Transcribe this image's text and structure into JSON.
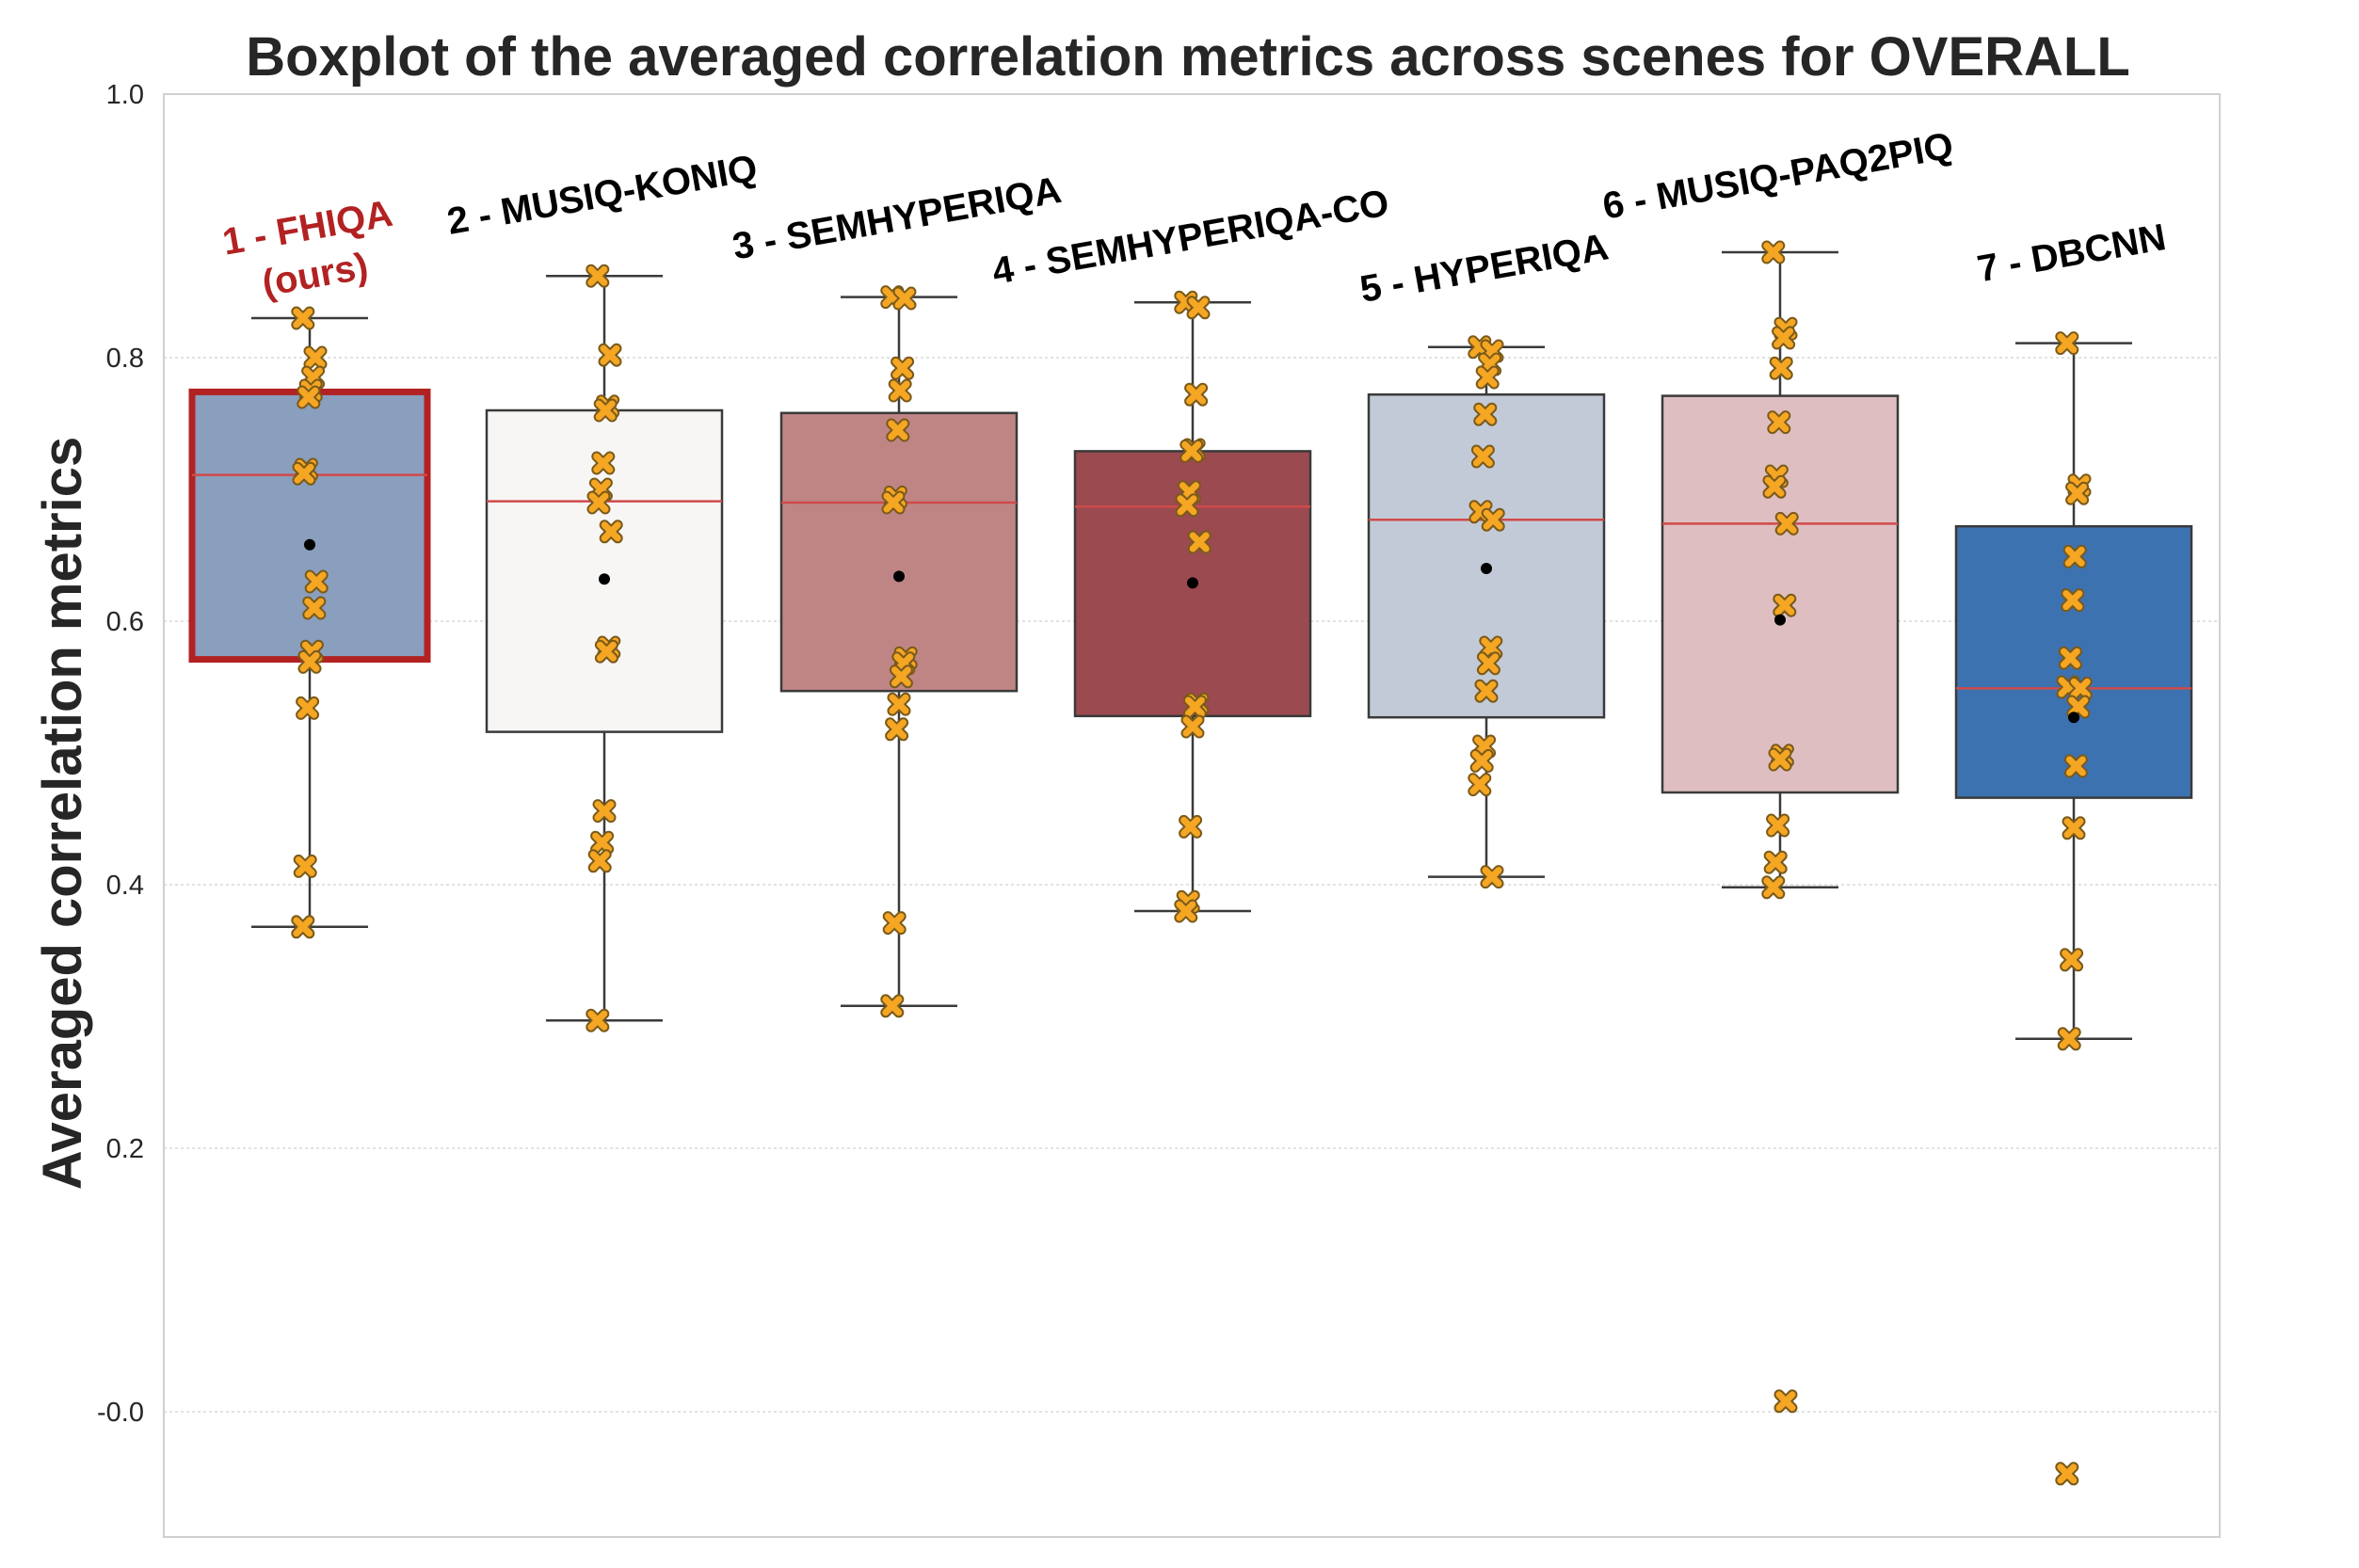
{
  "chart_data": {
    "type": "box",
    "title": "Boxplot of the averaged correlation metrics across scenes for OVERALL",
    "xlabel": "",
    "ylabel": "Averaged correlation metrics",
    "ylim": [
      -0.095,
      1.0
    ],
    "yticks": [
      "-0.0",
      "0.2",
      "0.4",
      "0.6",
      "0.8",
      "1.0"
    ],
    "ytick_values": [
      0.0,
      0.2,
      0.4,
      0.6,
      0.8,
      1.0
    ],
    "grid": true,
    "marker_color": "#F5A623",
    "median_color": "#D04A4A",
    "highlight_color": "#B22222",
    "boxes": [
      {
        "label": "1 - FHIQA",
        "sublabel": "(ours)",
        "highlight": true,
        "fill": "#8A9EBD",
        "whisker_low": 0.368,
        "q1": 0.571,
        "median": 0.711,
        "q3": 0.774,
        "whisker_high": 0.83,
        "mean": 0.658,
        "points": [
          0.83,
          0.8,
          0.785,
          0.775,
          0.77,
          0.715,
          0.712,
          0.63,
          0.61,
          0.577,
          0.569,
          0.534,
          0.414,
          0.368
        ]
      },
      {
        "label": "2 - MUSIQ-KONIQ",
        "highlight": false,
        "fill": "#F7F6F4",
        "whisker_low": 0.297,
        "q1": 0.516,
        "median": 0.691,
        "q3": 0.76,
        "whisker_high": 0.862,
        "mean": 0.632,
        "points": [
          0.862,
          0.802,
          0.763,
          0.76,
          0.72,
          0.7,
          0.69,
          0.668,
          0.58,
          0.577,
          0.456,
          0.432,
          0.418,
          0.297
        ]
      },
      {
        "label": "3 - SEMHYPERIQA",
        "highlight": false,
        "fill": "#BF8585",
        "whisker_low": 0.308,
        "q1": 0.547,
        "median": 0.69,
        "q3": 0.758,
        "whisker_high": 0.846,
        "mean": 0.634,
        "points": [
          0.846,
          0.845,
          0.792,
          0.775,
          0.745,
          0.694,
          0.69,
          0.572,
          0.568,
          0.558,
          0.537,
          0.518,
          0.371,
          0.308
        ]
      },
      {
        "label": "4 - SEMHYPERIQA-CO",
        "highlight": false,
        "fill": "#9B4A50",
        "whisker_low": 0.38,
        "q1": 0.528,
        "median": 0.687,
        "q3": 0.729,
        "whisker_high": 0.842,
        "mean": 0.629,
        "points": [
          0.842,
          0.838,
          0.772,
          0.73,
          0.729,
          0.698,
          0.688,
          0.66,
          0.537,
          0.535,
          0.52,
          0.444,
          0.387,
          0.38
        ]
      },
      {
        "label": "5 - HYPERIQA",
        "highlight": false,
        "fill": "#C3CAD7",
        "whisker_low": 0.406,
        "q1": 0.527,
        "median": 0.677,
        "q3": 0.772,
        "whisker_high": 0.808,
        "mean": 0.64,
        "points": [
          0.808,
          0.805,
          0.795,
          0.785,
          0.757,
          0.725,
          0.683,
          0.677,
          0.58,
          0.568,
          0.547,
          0.505,
          0.494,
          0.476,
          0.406
        ]
      },
      {
        "label": "6 - MUSIQ-PAQ2PIQ",
        "highlight": false,
        "fill": "#DFBEC2",
        "whisker_low": 0.398,
        "q1": 0.47,
        "median": 0.674,
        "q3": 0.771,
        "whisker_high": 0.88,
        "mean": 0.601,
        "points": [
          0.88,
          0.822,
          0.815,
          0.792,
          0.751,
          0.71,
          0.702,
          0.674,
          0.612,
          0.498,
          0.495,
          0.445,
          0.417,
          0.398,
          0.008
        ]
      },
      {
        "label": "7 - DBCNN",
        "highlight": false,
        "fill": "#3D72B0",
        "whisker_low": 0.283,
        "q1": 0.466,
        "median": 0.549,
        "q3": 0.672,
        "whisker_high": 0.811,
        "mean": 0.527,
        "points": [
          0.811,
          0.703,
          0.697,
          0.649,
          0.616,
          0.572,
          0.55,
          0.549,
          0.535,
          0.49,
          0.443,
          0.343,
          0.283,
          -0.047
        ]
      }
    ]
  }
}
